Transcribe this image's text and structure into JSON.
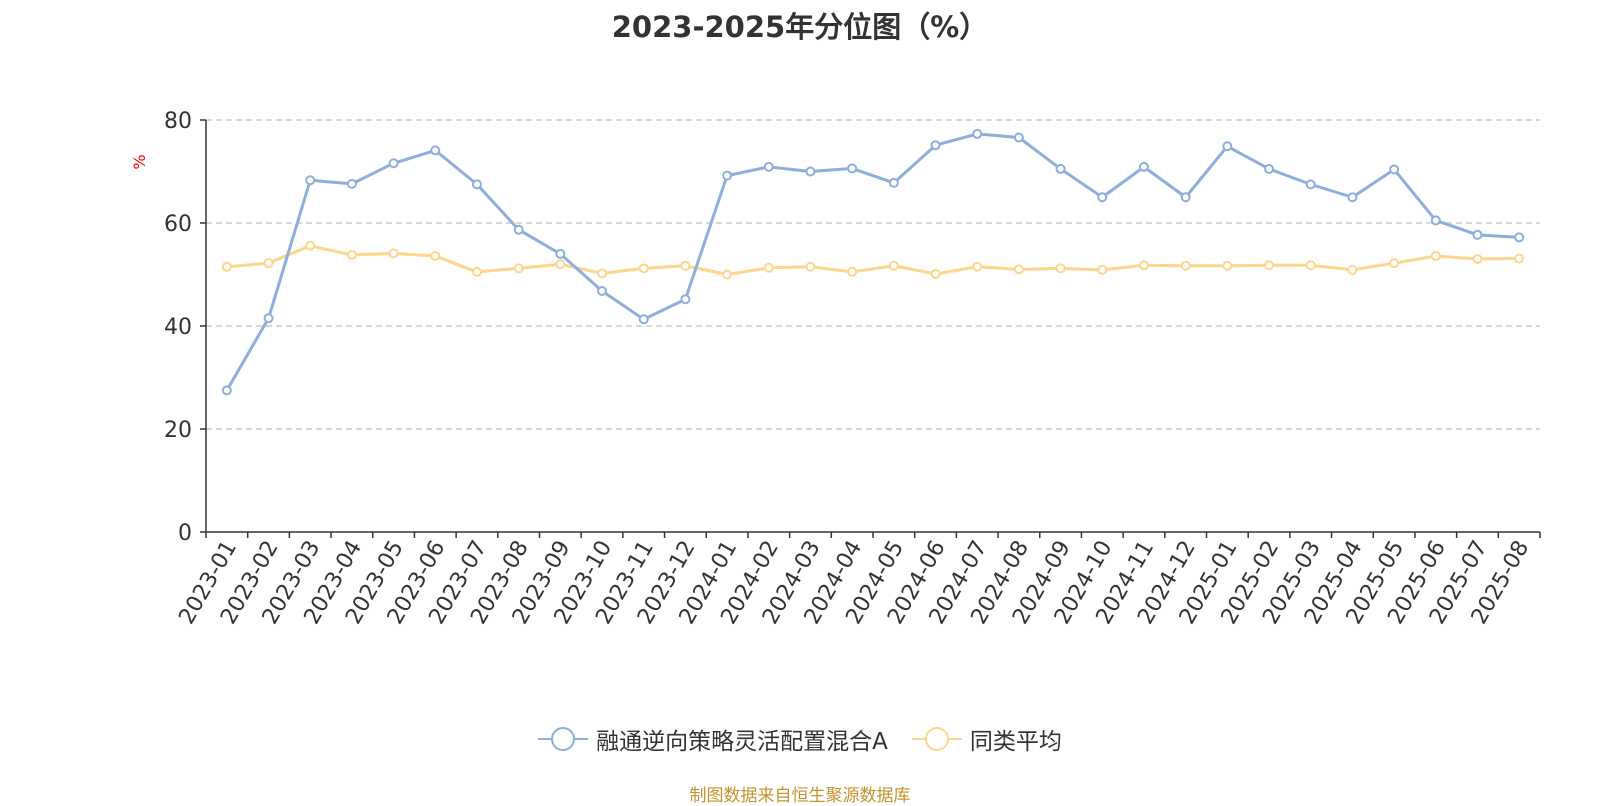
{
  "title": "2023-2025年分位图（%）",
  "y_unit": "%",
  "source": "制图数据来自恒生聚源数据库",
  "colors": {
    "fund": "#8eaedb",
    "avg": "#fdd58d",
    "axis": "#333333",
    "grid": "#cccccc",
    "unit": "#ff0000",
    "source": "#c8912c"
  },
  "legend": [
    {
      "label": "融通逆向策略灵活配置混合A",
      "color": "#8eaedb"
    },
    {
      "label": "同类平均",
      "color": "#fdd58d"
    }
  ],
  "chart_data": {
    "type": "line",
    "title": "2023-2025年分位图（%）",
    "ylabel": "%",
    "ylim": [
      0,
      80
    ],
    "yticks": [
      0,
      20,
      40,
      60,
      80
    ],
    "grid": true,
    "legend_position": "bottom",
    "categories": [
      "2023-01",
      "2023-02",
      "2023-03",
      "2023-04",
      "2023-05",
      "2023-06",
      "2023-07",
      "2023-08",
      "2023-09",
      "2023-10",
      "2023-11",
      "2023-12",
      "2024-01",
      "2024-02",
      "2024-03",
      "2024-04",
      "2024-05",
      "2024-06",
      "2024-07",
      "2024-08",
      "2024-09",
      "2024-10",
      "2024-11",
      "2024-12",
      "2025-01",
      "2025-02",
      "2025-03",
      "2025-04",
      "2025-05",
      "2025-06",
      "2025-07",
      "2025-08"
    ],
    "series": [
      {
        "name": "融通逆向策略灵活配置混合A",
        "values": [
          27.5,
          41.5,
          68.3,
          67.6,
          71.6,
          74.1,
          67.5,
          58.7,
          54.0,
          46.8,
          41.3,
          45.2,
          69.2,
          70.9,
          70.0,
          70.6,
          67.8,
          75.1,
          77.3,
          76.6,
          70.5,
          65.0,
          70.9,
          65.0,
          74.9,
          70.5,
          67.5,
          65.0,
          70.4,
          60.5,
          57.7,
          57.2
        ]
      },
      {
        "name": "同类平均",
        "values": [
          51.5,
          52.2,
          55.6,
          53.8,
          54.1,
          53.6,
          50.5,
          51.2,
          52.0,
          50.2,
          51.2,
          51.7,
          50.0,
          51.3,
          51.5,
          50.5,
          51.7,
          50.1,
          51.5,
          51.0,
          51.2,
          50.9,
          51.8,
          51.7,
          51.7,
          51.8,
          51.8,
          50.9,
          52.2,
          53.6,
          53.0,
          53.1
        ]
      }
    ]
  }
}
